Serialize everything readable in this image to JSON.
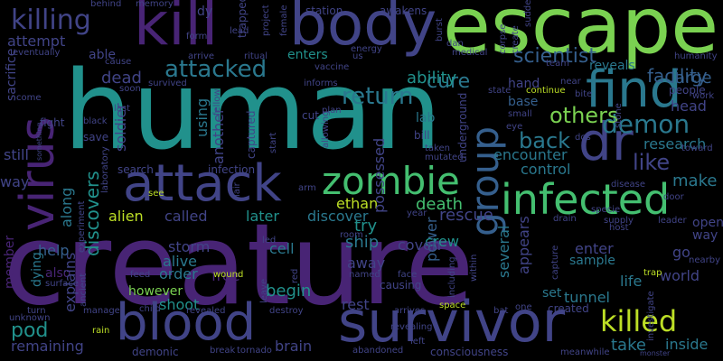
{
  "colors": {
    "background": "#000000",
    "palette": [
      "#440154",
      "#482475",
      "#414487",
      "#355f8d",
      "#2a788e",
      "#21918c",
      "#22a884",
      "#44bf70",
      "#7ad151",
      "#bddf26",
      "#fde725"
    ]
  },
  "words": [
    "creature",
    "human",
    "escape",
    "kill",
    "body",
    "survivor",
    "find",
    "attack",
    "blood",
    "infected",
    "virus",
    "dr",
    "zombie",
    "group",
    "killed",
    "killing",
    "attacked",
    "demon",
    "return",
    "cure",
    "scientist",
    "facility",
    "back",
    "others",
    "like",
    "encounter",
    "attempt",
    "discovers",
    "dead",
    "ability",
    "large",
    "head",
    "research",
    "make",
    "rescue",
    "death",
    "ethan",
    "discover",
    "later",
    "called",
    "alien",
    "along",
    "another",
    "using",
    "soldier",
    "able",
    "enters",
    "reveals",
    "hand",
    "base",
    "lab",
    "possessed",
    "control",
    "appears",
    "several",
    "power",
    "crew",
    "away",
    "coven",
    "ship",
    "try",
    "cell",
    "begin",
    "order",
    "alive",
    "storm",
    "shoot",
    "however",
    "free",
    "pod",
    "help",
    "still",
    "also",
    "explains",
    "remaining",
    "member",
    "dying",
    "way",
    "sacrifice",
    "rest",
    "brain",
    "demonic",
    "inside",
    "take",
    "life",
    "tunnel",
    "enter",
    "sample",
    "set",
    "go",
    "world",
    "open",
    "way",
    "infection",
    "search",
    "dy",
    "trapped",
    "station",
    "awakens",
    "corpse",
    "create",
    "medical",
    "state",
    "continue",
    "bite",
    "people",
    "work",
    "humanity",
    "team",
    "near",
    "energy",
    "dan",
    "burst",
    "ritual",
    "arrive",
    "vaccine",
    "informs",
    "survived",
    "memory",
    "behind",
    "form",
    "lead",
    "project",
    "female",
    "last",
    "black",
    "fight",
    "come",
    "save",
    "laboratory",
    "experiment",
    "see",
    "feed",
    "wound",
    "led",
    "room",
    "face",
    "trap",
    "leader",
    "nearby",
    "host",
    "supply",
    "year",
    "drain",
    "capture",
    "door",
    "disease",
    "specie",
    "small",
    "stone",
    "dos",
    "taken",
    "mutated",
    "bill",
    "underground",
    "cut",
    "plan",
    "start",
    "captured",
    "arm",
    "lair",
    "allowing",
    "surface",
    "turn",
    "unknown",
    "ancient",
    "manages",
    "child",
    "rain",
    "revealed",
    "tornado",
    "break",
    "destroy",
    "red",
    "leave",
    "causing",
    "within",
    "including",
    "arrives",
    "space",
    "one",
    "created",
    "bat",
    "abandoned",
    "consciousness",
    "revealing",
    "left",
    "us",
    "meanwhile",
    "monster",
    "investigate",
    "cause",
    "eventually",
    "soon",
    "suddenly",
    "something",
    "fellow",
    "named",
    "toward",
    "eye"
  ]
}
